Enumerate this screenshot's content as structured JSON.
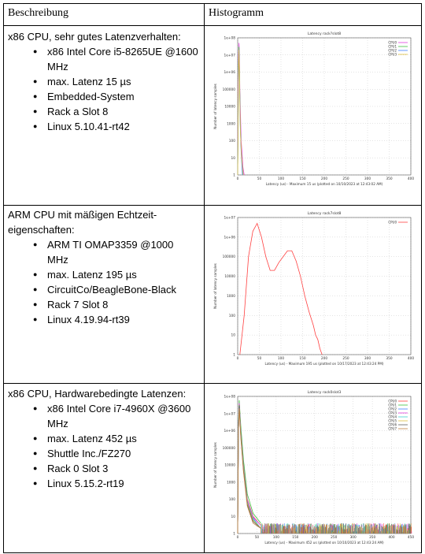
{
  "table": {
    "headers": [
      "Beschreibung",
      "Histogramm"
    ],
    "rows": [
      {
        "title": "x86 CPU, sehr gutes Latenzverhalten:",
        "items": [
          "x86 Intel Core i5-8265UE @1600 MHz",
          "max. Latenz 15 µs",
          "Embedded-System",
          "Rack a Slot 8",
          "Linux 5.10.41-rt42"
        ]
      },
      {
        "title": "ARM CPU mit mäßigen Echtzeit-eigenschaften:",
        "items": [
          "ARM TI OMAP3359 @1000 MHz",
          "max. Latenz 195 µs",
          "CircuitCo/BeagleBone-Black",
          "Rack 7 Slot 8",
          "Linux 4.19.94-rt39"
        ]
      },
      {
        "title": "x86 CPU, Hardwarebedingte Latenzen:",
        "items": [
          "x86 Intel Core i7-4960X @3600 MHz",
          "max. Latenz 452 µs",
          "Shuttle Inc./FZ270",
          "Rack 0 Slot 3",
          "Linux 5.15.2-rt19"
        ]
      }
    ]
  },
  "chart_data": [
    {
      "type": "line",
      "title": "Latency rack?slot8",
      "ylabel": "Number of latency samples",
      "xlabel": "Latency (us) - Maximum 15 us (plotted on 10/10/2023 at 12:43:02 AM)",
      "y_scale": "log",
      "ylim": [
        1,
        100000000.0
      ],
      "yticks": [
        "1e+08",
        "1e+07",
        "1e+06",
        "100000",
        "10000",
        "1000",
        "100",
        "10",
        "1"
      ],
      "xlim": [
        0,
        400
      ],
      "xticks": [
        "0",
        "50",
        "100",
        "150",
        "200",
        "250",
        "300",
        "350",
        "400"
      ],
      "series": [
        {
          "name": "CPU0",
          "color": "#e040e0",
          "x": [
            0,
            1,
            2,
            3,
            4,
            5,
            6,
            7,
            8,
            10,
            12,
            15
          ],
          "y": [
            1,
            100000.0,
            10000000.0,
            50000000.0,
            10000000.0,
            100000.0,
            10000.0,
            1000,
            100,
            20,
            3,
            1
          ]
        },
        {
          "name": "CPU1",
          "color": "#40c040",
          "x": [
            0,
            2,
            3,
            4,
            6,
            8,
            12
          ],
          "y": [
            1,
            2000000.0,
            30000000.0,
            2000000.0,
            1000,
            30,
            1
          ]
        },
        {
          "name": "CPU2",
          "color": "#4080ff",
          "x": [
            0,
            2,
            3,
            4,
            6,
            8,
            11
          ],
          "y": [
            1,
            1000000.0,
            20000000.0,
            1000000.0,
            800,
            20,
            1
          ]
        },
        {
          "name": "CPU3",
          "color": "#e0c040",
          "x": [
            0,
            2,
            3,
            4,
            6,
            9,
            13
          ],
          "y": [
            1,
            1000000.0,
            20000000.0,
            1000000.0,
            500,
            10,
            1
          ]
        }
      ]
    },
    {
      "type": "line",
      "title": "Latency rack7slot8",
      "ylabel": "Number of latency samples",
      "xlabel": "Latency (us) - Maximum 195 us (plotted on 10/17/2023 at 12:43:24 PM)",
      "y_scale": "log",
      "ylim": [
        1,
        10000000.0
      ],
      "yticks": [
        "1e+07",
        "1e+06",
        "100000",
        "10000",
        "1000",
        "100",
        "10",
        "1"
      ],
      "xlim": [
        0,
        400
      ],
      "xticks": [
        "0",
        "50",
        "100",
        "150",
        "200",
        "250",
        "300",
        "350",
        "400"
      ],
      "series": [
        {
          "name": "CPU0",
          "color": "#ff4040",
          "x": [
            5,
            15,
            25,
            35,
            45,
            55,
            65,
            75,
            85,
            95,
            105,
            115,
            125,
            135,
            145,
            155,
            165,
            175,
            180,
            185,
            190,
            195
          ],
          "y": [
            1,
            100,
            100000.0,
            2000000.0,
            5000000.0,
            1000000.0,
            100000.0,
            20000.0,
            20000.0,
            50000.0,
            100000.0,
            200000.0,
            200000.0,
            60000.0,
            10000.0,
            1000,
            150,
            30,
            10,
            6,
            2,
            1
          ]
        }
      ]
    },
    {
      "type": "line",
      "title": "Latency rack0slot3",
      "ylabel": "Number of latency samples",
      "xlabel": "Latency (us) - Maximum 452 us (plotted on 10/10/2023 at 12:43:24 AM)",
      "y_scale": "log",
      "ylim": [
        1,
        100000000.0
      ],
      "yticks": [
        "1e+08",
        "1e+07",
        "1e+06",
        "100000",
        "10000",
        "1000",
        "100",
        "10",
        "1"
      ],
      "xlim": [
        0,
        450
      ],
      "xticks": [
        "0",
        "50",
        "100",
        "150",
        "200",
        "250",
        "300",
        "350",
        "400",
        "450"
      ],
      "series": [
        {
          "name": "CPU0",
          "color": "#ff4040",
          "x": [
            0,
            2,
            4,
            8,
            15,
            25,
            40,
            60
          ],
          "y": [
            1,
            1000000.0,
            50000000.0,
            1000000.0,
            10000.0,
            100,
            10,
            3
          ]
        },
        {
          "name": "CPU1",
          "color": "#40c040",
          "x": [
            0,
            2,
            4,
            8,
            15,
            25,
            40,
            60
          ],
          "y": [
            1,
            2000000.0,
            60000000.0,
            2000000.0,
            20000.0,
            200,
            15,
            4
          ]
        },
        {
          "name": "CPU2",
          "color": "#4080ff",
          "x": [
            0,
            2,
            4,
            8,
            15,
            25,
            40,
            60
          ],
          "y": [
            1,
            1000000.0,
            40000000.0,
            800000.0,
            8000,
            80,
            8,
            2
          ]
        },
        {
          "name": "CPU3",
          "color": "#e040e0",
          "x": [
            0,
            2,
            4,
            8,
            15,
            25,
            40,
            60
          ],
          "y": [
            1,
            1000000.0,
            40000000.0,
            900000.0,
            9000,
            90,
            9,
            3
          ]
        },
        {
          "name": "CPU4",
          "color": "#40d0d0",
          "x": [
            0,
            2,
            4,
            8,
            15,
            25,
            40,
            60
          ],
          "y": [
            1,
            1000000.0,
            30000000.0,
            700000.0,
            7000,
            70,
            7,
            2
          ]
        },
        {
          "name": "CPU5",
          "color": "#e0c040",
          "x": [
            0,
            2,
            4,
            8,
            15,
            25,
            40,
            60
          ],
          "y": [
            1,
            1000000.0,
            30000000.0,
            600000.0,
            6000,
            60,
            6,
            2
          ]
        },
        {
          "name": "CPU6",
          "color": "#606060",
          "x": [
            0,
            2,
            4,
            8,
            15,
            25,
            40,
            60
          ],
          "y": [
            1,
            1000000.0,
            30000000.0,
            500000.0,
            5000,
            50,
            5,
            2
          ]
        },
        {
          "name": "CPU7",
          "color": "#c08040",
          "x": [
            0,
            2,
            4,
            8,
            15,
            25,
            40,
            60
          ],
          "y": [
            1,
            1000000.0,
            20000000.0,
            400000.0,
            4000,
            40,
            4,
            2
          ]
        }
      ],
      "noise_tail": {
        "x_range": [
          60,
          452
        ],
        "y_max": 4
      }
    }
  ]
}
